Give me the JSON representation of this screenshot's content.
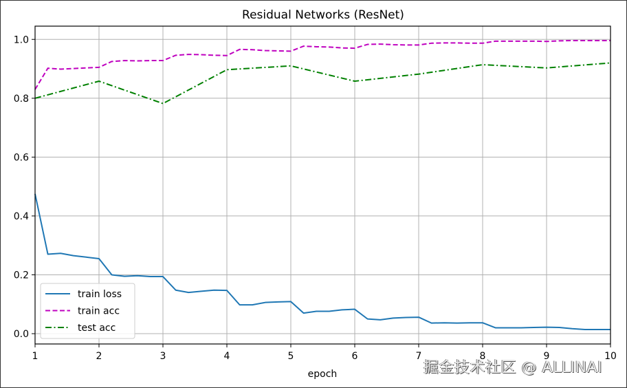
{
  "chart_data": {
    "type": "line",
    "title": "Residual Networks (ResNet)",
    "xlabel": "epoch",
    "ylabel": "",
    "xlim": [
      1,
      10
    ],
    "ylim": [
      -0.035,
      1.045
    ],
    "xticks": [
      "1",
      "2",
      "3",
      "4",
      "5",
      "6",
      "7",
      "8",
      "9",
      "10"
    ],
    "yticks": [
      "0.0",
      "0.2",
      "0.4",
      "0.6",
      "0.8",
      "1.0"
    ],
    "grid": true,
    "legend_position": "lower left",
    "series": [
      {
        "name": "train loss",
        "color": "#1f77b4",
        "style": "solid",
        "x": [
          1.0,
          1.2,
          1.4,
          1.6,
          1.8,
          2.0,
          2.2,
          2.4,
          2.6,
          2.8,
          3.0,
          3.2,
          3.4,
          3.6,
          3.8,
          4.0,
          4.2,
          4.4,
          4.6,
          4.8,
          5.0,
          5.2,
          5.4,
          5.6,
          5.8,
          6.0,
          6.2,
          6.4,
          6.6,
          6.8,
          7.0,
          7.2,
          7.4,
          7.6,
          7.8,
          8.0,
          8.2,
          8.4,
          8.6,
          8.8,
          9.0,
          9.2,
          9.4,
          9.6,
          9.8,
          10.0
        ],
        "values": [
          0.475,
          0.27,
          0.273,
          0.265,
          0.26,
          0.255,
          0.2,
          0.195,
          0.197,
          0.194,
          0.194,
          0.148,
          0.14,
          0.144,
          0.148,
          0.147,
          0.098,
          0.098,
          0.106,
          0.108,
          0.109,
          0.07,
          0.076,
          0.076,
          0.081,
          0.083,
          0.05,
          0.047,
          0.053,
          0.055,
          0.056,
          0.036,
          0.037,
          0.036,
          0.037,
          0.037,
          0.02,
          0.02,
          0.02,
          0.021,
          0.022,
          0.021,
          0.017,
          0.014,
          0.014,
          0.014
        ]
      },
      {
        "name": "train acc",
        "color": "#bf00bf",
        "style": "dashed",
        "x": [
          1.0,
          1.2,
          1.4,
          1.6,
          1.8,
          2.0,
          2.2,
          2.4,
          2.6,
          2.8,
          3.0,
          3.2,
          3.4,
          3.6,
          3.8,
          4.0,
          4.2,
          4.4,
          4.6,
          4.8,
          5.0,
          5.2,
          5.4,
          5.6,
          5.8,
          6.0,
          6.2,
          6.4,
          6.6,
          6.8,
          7.0,
          7.2,
          7.4,
          7.6,
          7.8,
          8.0,
          8.2,
          8.4,
          8.6,
          8.8,
          9.0,
          9.2,
          9.4,
          9.6,
          9.8,
          10.0
        ],
        "values": [
          0.83,
          0.902,
          0.899,
          0.901,
          0.903,
          0.905,
          0.925,
          0.928,
          0.927,
          0.928,
          0.928,
          0.946,
          0.949,
          0.948,
          0.946,
          0.945,
          0.966,
          0.965,
          0.962,
          0.961,
          0.96,
          0.977,
          0.975,
          0.974,
          0.971,
          0.97,
          0.983,
          0.984,
          0.982,
          0.981,
          0.981,
          0.987,
          0.988,
          0.988,
          0.987,
          0.987,
          0.994,
          0.994,
          0.994,
          0.994,
          0.993,
          0.995,
          0.996,
          0.996,
          0.996,
          0.996
        ]
      },
      {
        "name": "test acc",
        "color": "#008000",
        "style": "dashdot",
        "x": [
          1,
          2,
          3,
          4,
          5,
          6,
          7,
          8,
          9,
          10
        ],
        "values": [
          0.8,
          0.858,
          0.782,
          0.897,
          0.91,
          0.858,
          0.882,
          0.914,
          0.903,
          0.92
        ]
      }
    ]
  },
  "watermark": "掘金技术社区 @ ALLINAI"
}
